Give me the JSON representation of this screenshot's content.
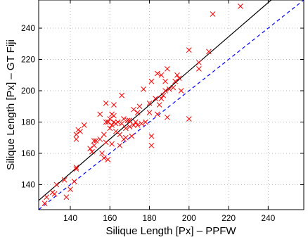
{
  "chart_data": {
    "type": "scatter",
    "title": "",
    "xlabel": "Silique Length [Px] – PPFW",
    "ylabel": "Silique Length [Px] – GT Fiji",
    "xlim": [
      124,
      258
    ],
    "ylim": [
      124,
      258
    ],
    "xticks": [
      140,
      160,
      180,
      200,
      220,
      240
    ],
    "yticks": [
      140,
      160,
      180,
      200,
      220,
      240
    ],
    "grid": true,
    "grid_style": "dotted",
    "series": [
      {
        "marker": "x",
        "color": "#ff0000",
        "points": [
          [
            127,
            128
          ],
          [
            128,
            132
          ],
          [
            131,
            135
          ],
          [
            132,
            134
          ],
          [
            133,
            140
          ],
          [
            137,
            143
          ],
          [
            138,
            132
          ],
          [
            140,
            137
          ],
          [
            142,
            142
          ],
          [
            143,
            150
          ],
          [
            143,
            151
          ],
          [
            143,
            169
          ],
          [
            143,
            172
          ],
          [
            144,
            175
          ],
          [
            145,
            174
          ],
          [
            147,
            178
          ],
          [
            150,
            163
          ],
          [
            151,
            161
          ],
          [
            152,
            165
          ],
          [
            152,
            168
          ],
          [
            153,
            168
          ],
          [
            155,
            169
          ],
          [
            155,
            185
          ],
          [
            156,
            160
          ],
          [
            157,
            157
          ],
          [
            157,
            172
          ],
          [
            158,
            167
          ],
          [
            158,
            180
          ],
          [
            158,
            192
          ],
          [
            159,
            156
          ],
          [
            159,
            180
          ],
          [
            160,
            176
          ],
          [
            160,
            182
          ],
          [
            161,
            166
          ],
          [
            161,
            178
          ],
          [
            161,
            185
          ],
          [
            162,
            180
          ],
          [
            162,
            184
          ],
          [
            162,
            191
          ],
          [
            163,
            174
          ],
          [
            163,
            179
          ],
          [
            164,
            180
          ],
          [
            165,
            165
          ],
          [
            165,
            172
          ],
          [
            166,
            179
          ],
          [
            166,
            197
          ],
          [
            167,
            169
          ],
          [
            167,
            182
          ],
          [
            168,
            170
          ],
          [
            168,
            176
          ],
          [
            169,
            181
          ],
          [
            170,
            177
          ],
          [
            170,
            181
          ],
          [
            171,
            171
          ],
          [
            172,
            178
          ],
          [
            172,
            188
          ],
          [
            173,
            180
          ],
          [
            174,
            178
          ],
          [
            174,
            186
          ],
          [
            175,
            190
          ],
          [
            176,
            179
          ],
          [
            177,
            201
          ],
          [
            178,
            180
          ],
          [
            180,
            186
          ],
          [
            180,
            192
          ],
          [
            181,
            165
          ],
          [
            181,
            171
          ],
          [
            181,
            206
          ],
          [
            183,
            195
          ],
          [
            184,
            185
          ],
          [
            184,
            211
          ],
          [
            185,
            191
          ],
          [
            186,
            195
          ],
          [
            186,
            210
          ],
          [
            187,
            197
          ],
          [
            188,
            200
          ],
          [
            188,
            206
          ],
          [
            189,
            183
          ],
          [
            189,
            214
          ],
          [
            190,
            201
          ],
          [
            192,
            202
          ],
          [
            193,
            206
          ],
          [
            194,
            210
          ],
          [
            195,
            208
          ],
          [
            196,
            200
          ],
          [
            200,
            182
          ],
          [
            200,
            226
          ],
          [
            205,
            214
          ],
          [
            205,
            218
          ],
          [
            210,
            225
          ],
          [
            212,
            249
          ],
          [
            226,
            254
          ]
        ]
      }
    ],
    "lines": [
      {
        "style": "solid",
        "color": "#000000",
        "slope": 1.09,
        "intercept": -5.3
      },
      {
        "style": "dashed",
        "color": "#0000ff",
        "slope": 1.0,
        "intercept": 0
      }
    ]
  }
}
